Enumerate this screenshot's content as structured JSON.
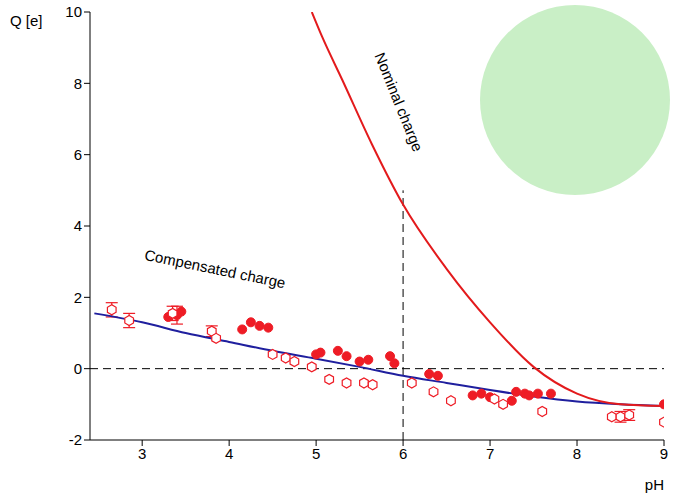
{
  "chart_data": {
    "type": "scatter",
    "xlabel": "pH",
    "ylabel": "Q [e]",
    "xlim": [
      2.4,
      9
    ],
    "ylim": [
      -2,
      10
    ],
    "xticks": [
      3,
      4,
      5,
      6,
      7,
      8,
      9
    ],
    "yticks": [
      -2,
      0,
      2,
      4,
      6,
      8,
      10
    ],
    "grid": false,
    "hline": 0,
    "vline": {
      "x": 6,
      "y": [
        -2,
        5
      ]
    },
    "series": [
      {
        "type": "scatter",
        "marker": "circle",
        "color": "#ee1c25",
        "x": [
          3.3,
          3.4,
          3.45,
          4.15,
          4.25,
          4.35,
          4.45,
          5.0,
          5.05,
          5.25,
          5.35,
          5.5,
          5.6,
          5.85,
          5.9,
          6.3,
          6.4,
          6.8,
          6.9,
          7.0,
          7.25,
          7.3,
          7.4,
          7.45,
          7.55,
          7.7,
          9.0
        ],
        "values": [
          1.45,
          1.5,
          1.6,
          1.1,
          1.3,
          1.2,
          1.15,
          0.4,
          0.45,
          0.5,
          0.35,
          0.2,
          0.25,
          0.35,
          0.15,
          -0.15,
          -0.2,
          -0.75,
          -0.7,
          -0.8,
          -0.9,
          -0.65,
          -0.7,
          -0.75,
          -0.7,
          -0.7,
          -1.0
        ],
        "errors": [
          null,
          0.25,
          null,
          null,
          null,
          null,
          null,
          null,
          null,
          null,
          null,
          null,
          null,
          null,
          null,
          null,
          null,
          null,
          null,
          null,
          null,
          null,
          null,
          null,
          null,
          null,
          null
        ]
      },
      {
        "type": "scatter",
        "marker": "hexagon",
        "color": "#ee1c25",
        "x": [
          2.65,
          2.85,
          3.35,
          3.8,
          3.85,
          4.5,
          4.65,
          4.75,
          4.95,
          5.15,
          5.35,
          5.55,
          5.65,
          6.1,
          6.35,
          6.55,
          7.05,
          7.15,
          7.6,
          8.4,
          8.5,
          8.6,
          9.0
        ],
        "values": [
          1.65,
          1.35,
          1.55,
          1.05,
          0.85,
          0.4,
          0.3,
          0.2,
          0.05,
          -0.3,
          -0.4,
          -0.4,
          -0.45,
          -0.4,
          -0.65,
          -0.9,
          -0.85,
          -1.0,
          -1.2,
          -1.35,
          -1.35,
          -1.3,
          -1.5
        ],
        "errors": [
          0.2,
          0.2,
          0.2,
          0.15,
          null,
          null,
          null,
          null,
          null,
          null,
          null,
          null,
          null,
          null,
          null,
          null,
          null,
          null,
          null,
          null,
          0.15,
          0.15,
          null
        ]
      },
      {
        "name": "Compensated charge",
        "type": "line",
        "color": "#1f1f9e",
        "x": [
          2.45,
          3,
          3.5,
          4,
          4.5,
          5,
          5.5,
          6,
          6.5,
          7,
          7.5,
          8,
          8.5,
          9
        ],
        "values": [
          1.55,
          1.3,
          1.0,
          0.75,
          0.5,
          0.28,
          0.05,
          -0.2,
          -0.4,
          -0.6,
          -0.78,
          -0.92,
          -1.0,
          -1.05
        ]
      },
      {
        "name": "Nominal charge",
        "type": "line",
        "color": "#e31a1c",
        "x": [
          4.95,
          5.07,
          5.3,
          5.64,
          6,
          6.5,
          7,
          7.5,
          8,
          8.5,
          9
        ],
        "values": [
          10,
          9.3,
          8.1,
          6.3,
          4.6,
          2.8,
          1.3,
          0.05,
          -0.7,
          -1.0,
          -1.05
        ]
      }
    ]
  }
}
